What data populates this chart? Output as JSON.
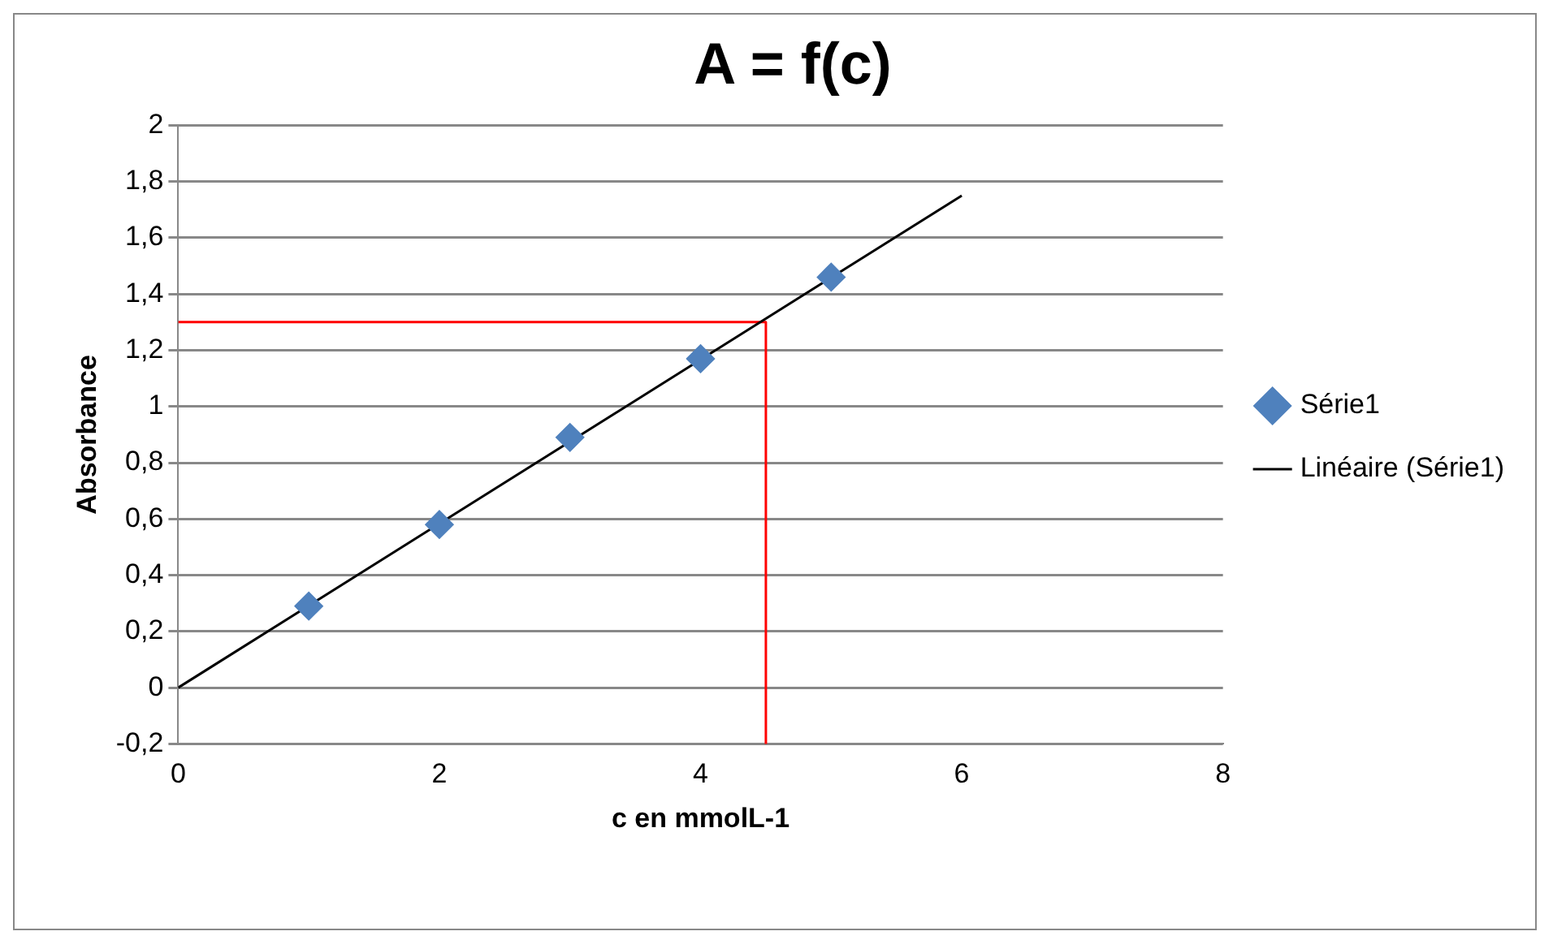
{
  "chart_data": {
    "type": "scatter",
    "title": "A = f(c)",
    "xlabel": "c en mmolL-1",
    "ylabel": "Absorbance",
    "xlim": [
      0,
      8
    ],
    "xticks": [
      0,
      2,
      4,
      6,
      8
    ],
    "ylim": [
      -0.2,
      2
    ],
    "yticks": [
      {
        "value": -0.2,
        "label": "-0,2"
      },
      0,
      {
        "value": 0.2,
        "label": "0,2"
      },
      {
        "value": 0.4,
        "label": "0,4"
      },
      {
        "value": 0.6,
        "label": "0,6"
      },
      {
        "value": 0.8,
        "label": "0,8"
      },
      1,
      {
        "value": 1.2,
        "label": "1,2"
      },
      {
        "value": 1.4,
        "label": "1,4"
      },
      {
        "value": 1.6,
        "label": "1,6"
      },
      {
        "value": 1.8,
        "label": "1,8"
      },
      2
    ],
    "grid": "y",
    "legend": "right",
    "marker": "diamond",
    "series": [
      {
        "name": "Série1",
        "color": "#4f81bd",
        "x": [
          1,
          2,
          3,
          4,
          5
        ],
        "values": [
          0.29,
          0.58,
          0.89,
          1.17,
          1.46
        ]
      },
      {
        "name": "Linéaire (Série1)",
        "type": "line",
        "color": "#000000",
        "x": [
          0,
          6
        ],
        "values": [
          0,
          1.75
        ],
        "marker": "none"
      },
      {
        "type": "line",
        "color": "#ff0000",
        "x": [
          0,
          4.5,
          4.5
        ],
        "values": [
          1.3,
          1.3,
          -0.2
        ],
        "marker": "none"
      }
    ]
  }
}
